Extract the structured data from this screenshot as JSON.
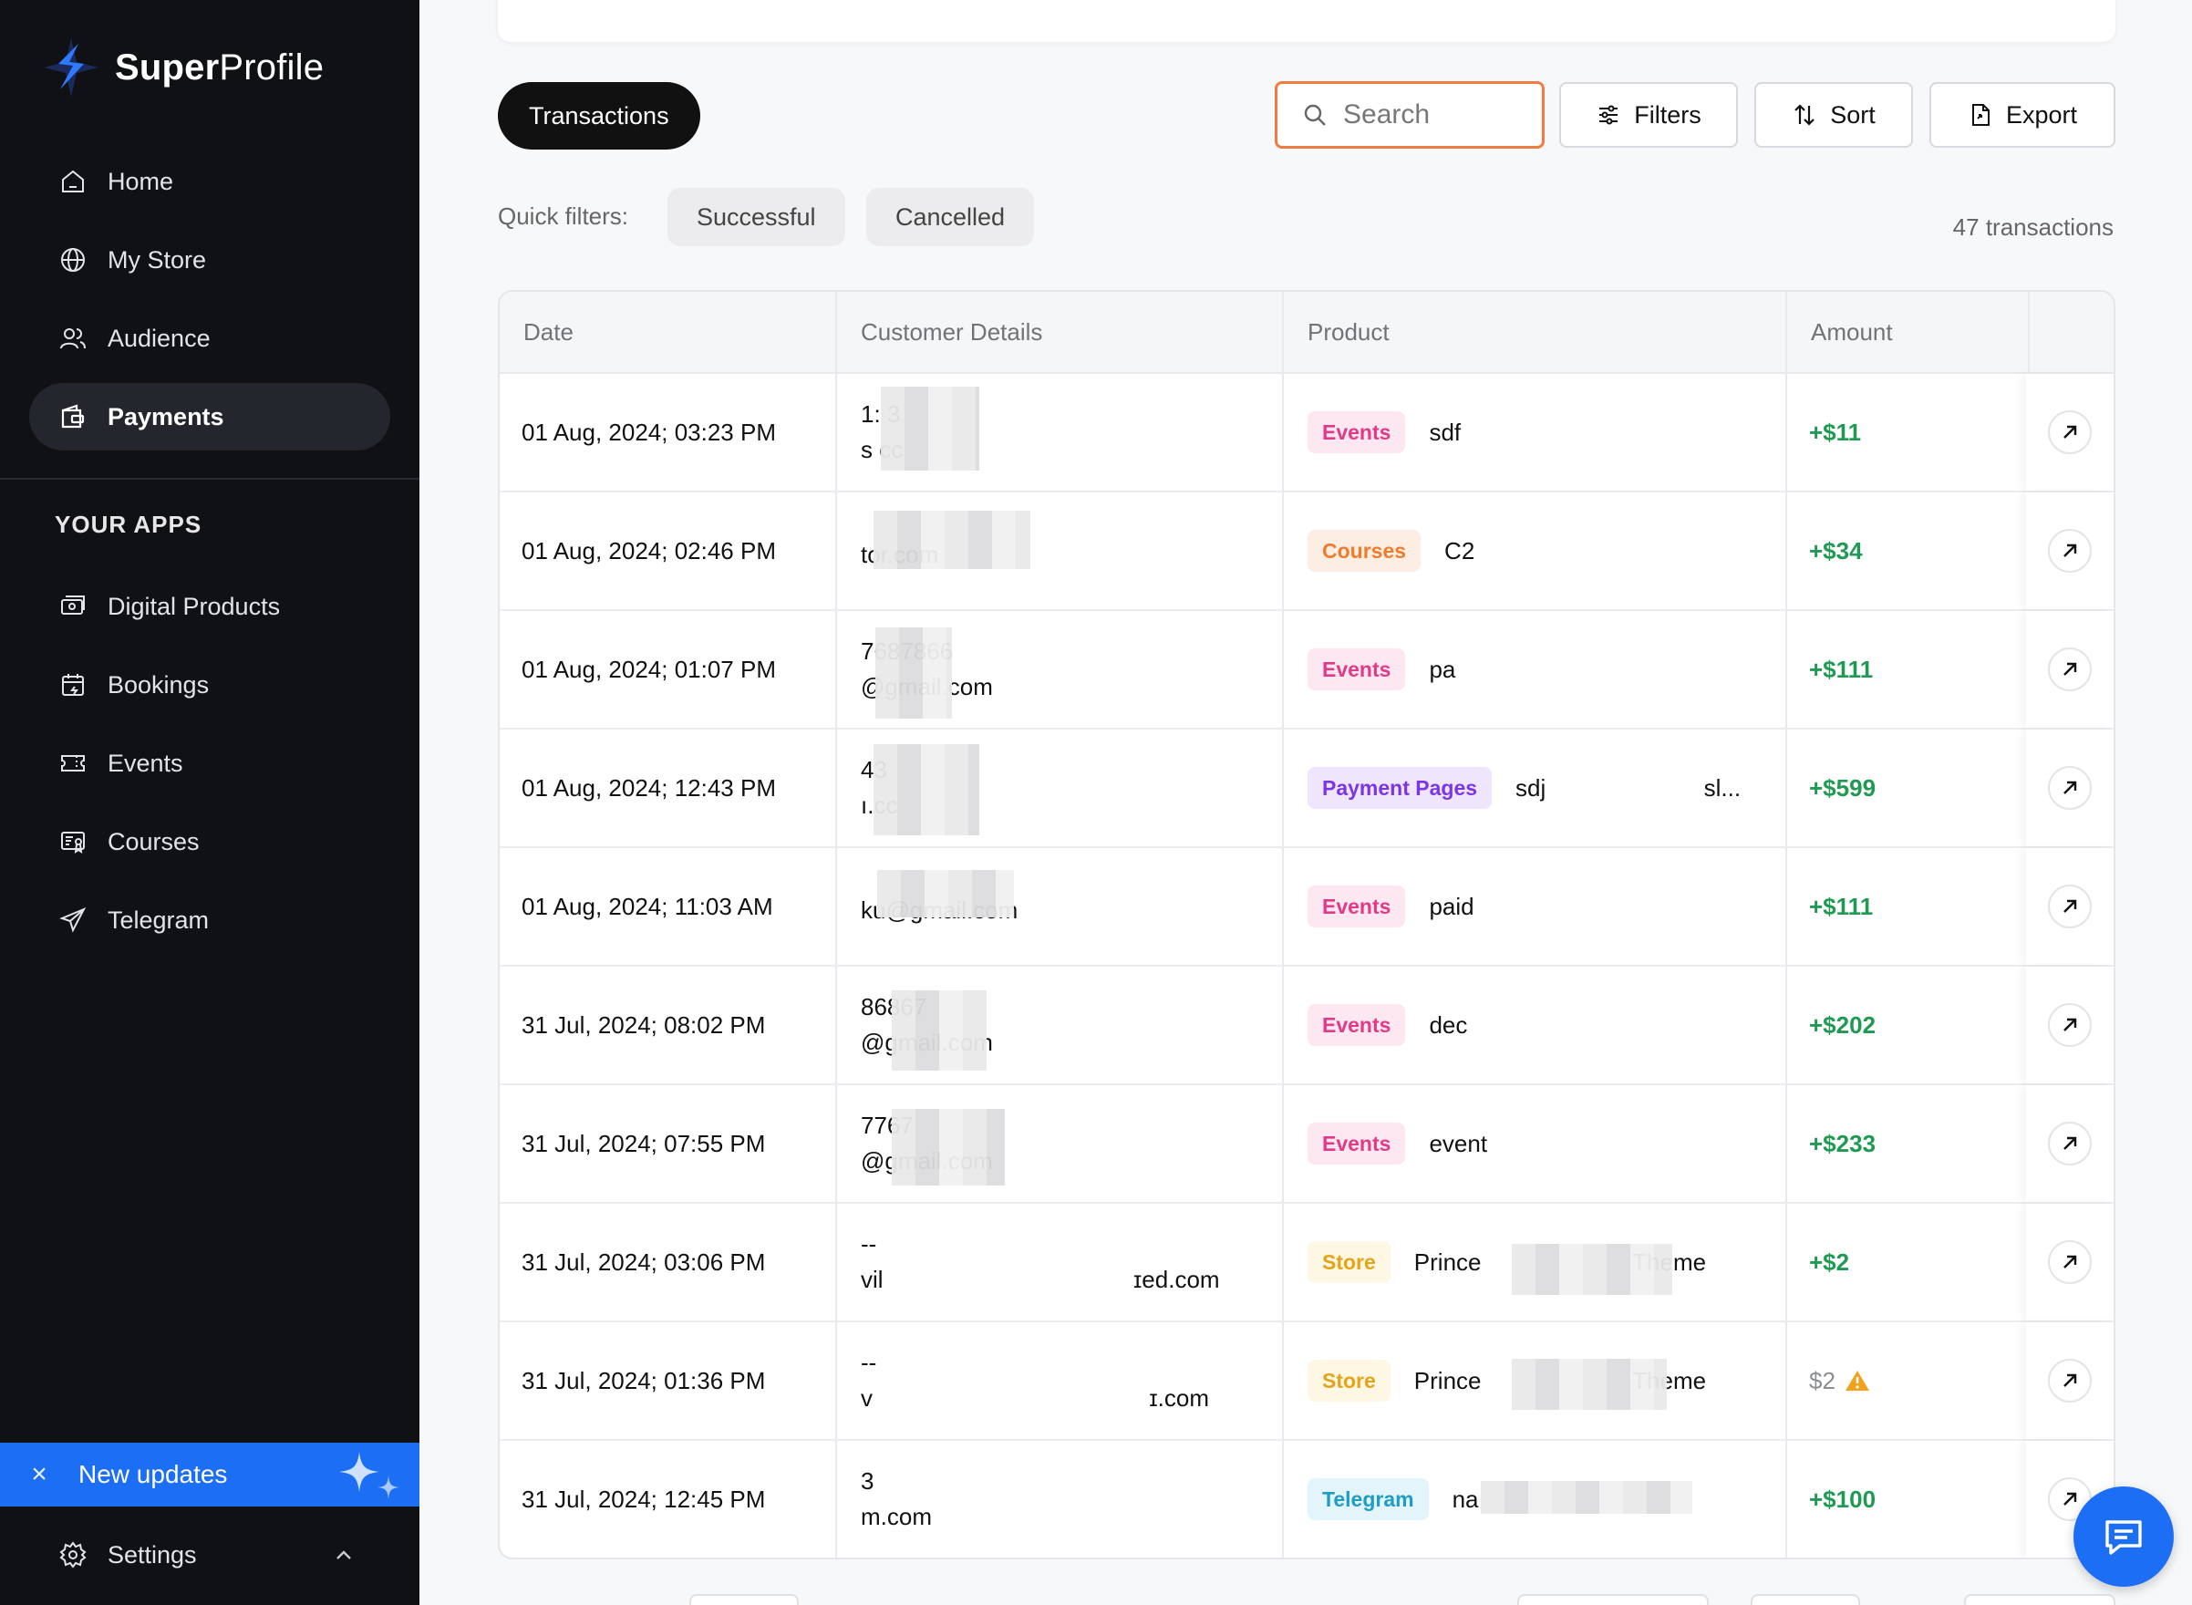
{
  "brand": {
    "name_bold": "Super",
    "name_light": "Profile"
  },
  "sidebar": {
    "items": [
      {
        "label": "Home",
        "icon": "home-icon"
      },
      {
        "label": "My Store",
        "icon": "globe-icon"
      },
      {
        "label": "Audience",
        "icon": "users-icon"
      },
      {
        "label": "Payments",
        "icon": "wallet-icon",
        "active": true
      }
    ],
    "apps_title": "YOUR APPS",
    "apps": [
      {
        "label": "Digital Products",
        "icon": "digital-products-icon"
      },
      {
        "label": "Bookings",
        "icon": "calendar-icon"
      },
      {
        "label": "Events",
        "icon": "ticket-icon"
      },
      {
        "label": "Courses",
        "icon": "course-icon"
      },
      {
        "label": "Telegram",
        "icon": "send-icon"
      }
    ],
    "updates": {
      "close": "×",
      "label": "New updates"
    },
    "settings": {
      "label": "Settings"
    }
  },
  "toolbar": {
    "tab": "Transactions",
    "search_placeholder": "Search",
    "filters": "Filters",
    "sort": "Sort",
    "export": "Export"
  },
  "quick_filters": {
    "label": "Quick filters:",
    "chips": [
      "Successful",
      "Cancelled"
    ]
  },
  "count": "47 transactions",
  "table": {
    "headers": [
      "Date",
      "Customer Details",
      "Product",
      "Amount"
    ],
    "rows": [
      {
        "date": "01 Aug, 2024; 03:23 PM",
        "cust1": "1:              3",
        "cust2": "s              cc",
        "badge": "Events",
        "product": "sdf",
        "amount": "+$11"
      },
      {
        "date": "01 Aug, 2024; 02:46 PM",
        "cust1": "",
        "cust2": "                 tor.com",
        "badge": "Courses",
        "product": "C2",
        "amount": "+$34"
      },
      {
        "date": "01 Aug, 2024; 01:07 PM",
        "cust1": "           7687866",
        "cust2": "           @gmail.com",
        "badge": "Events",
        "product": "pa",
        "amount": "+$111"
      },
      {
        "date": "01 Aug, 2024; 12:43 PM",
        "cust1": "              43",
        "cust2": "              ı.cc",
        "badge": "Payment Pages",
        "product": "sdj                        sl...",
        "amount": "+$599"
      },
      {
        "date": "01 Aug, 2024; 11:03 AM",
        "cust1": "",
        "cust2": "       ku@gmail.com",
        "badge": "Events",
        "product": "paid",
        "amount": "+$111"
      },
      {
        "date": "31 Jul, 2024; 08:02 PM",
        "cust1": "               86867",
        "cust2": "               @gmail.com",
        "badge": "Events",
        "product": "dec",
        "amount": "+$202"
      },
      {
        "date": "31 Jul, 2024; 07:55 PM",
        "cust1": "                 7767",
        "cust2": "                 @gmail.com",
        "badge": "Events",
        "product": "event",
        "amount": "+$233"
      },
      {
        "date": "31 Jul, 2024; 03:06 PM",
        "cust1": "--",
        "cust2": "vil                                      ɪed.com",
        "badge": "Store",
        "product": "Prince                       Theme",
        "amount": "+$2"
      },
      {
        "date": "31 Jul, 2024; 01:36 PM",
        "cust1": "--",
        "cust2": "v                                          ɪ.com",
        "badge": "Store",
        "product": "Prince                       Theme",
        "amount": "$2",
        "warning": true
      },
      {
        "date": "31 Jul, 2024; 12:45 PM",
        "cust1": "                 3",
        "cust2": "                 m.com",
        "badge": "Telegram",
        "product": "na",
        "amount": "+$100"
      }
    ]
  },
  "colors": {
    "accent": "#1c6ff5",
    "sidebar_bg": "#0f1115",
    "success": "#1f9a52",
    "search_border": "#f07c44"
  }
}
